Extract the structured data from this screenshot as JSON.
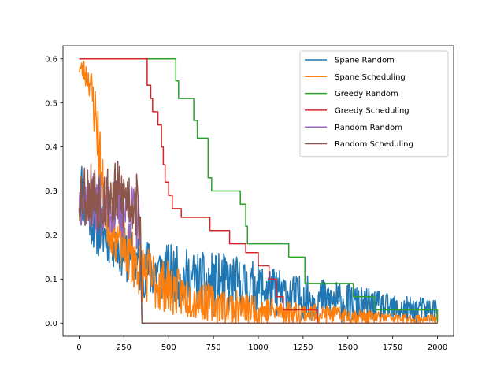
{
  "chart_data": {
    "type": "line",
    "title": "",
    "xlabel": "",
    "ylabel": "",
    "xlim": [
      -90,
      2090
    ],
    "ylim": [
      -0.03,
      0.63
    ],
    "xticks": [
      0,
      250,
      500,
      750,
      1000,
      1250,
      1500,
      1750,
      2000
    ],
    "yticks": [
      0.0,
      0.1,
      0.2,
      0.3,
      0.4,
      0.5,
      0.6
    ],
    "xtick_labels": [
      "0",
      "250",
      "500",
      "750",
      "1000",
      "1250",
      "1500",
      "1750",
      "2000"
    ],
    "ytick_labels": [
      "0.0",
      "0.1",
      "0.2",
      "0.3",
      "0.4",
      "0.5",
      "0.6"
    ],
    "grid": false,
    "legend_position": "top-right",
    "series": [
      {
        "name": "Spane Random",
        "color": "#1f77b4",
        "style": "noisy",
        "noise_seed": 11,
        "x": [
          0,
          50,
          100,
          150,
          200,
          250,
          300,
          350,
          400,
          500,
          600,
          700,
          800,
          1000,
          1200,
          1400,
          1600,
          1800,
          2000
        ],
        "mid": [
          0.32,
          0.26,
          0.22,
          0.2,
          0.18,
          0.16,
          0.14,
          0.13,
          0.12,
          0.11,
          0.1,
          0.09,
          0.09,
          0.08,
          0.06,
          0.05,
          0.04,
          0.03,
          0.03
        ],
        "amp": [
          0.08,
          0.07,
          0.07,
          0.06,
          0.06,
          0.06,
          0.07,
          0.07,
          0.07,
          0.07,
          0.07,
          0.07,
          0.07,
          0.06,
          0.05,
          0.05,
          0.04,
          0.03,
          0.03
        ]
      },
      {
        "name": "Spane Scheduling",
        "color": "#ff7f0e",
        "style": "noisy",
        "noise_seed": 23,
        "x": [
          0,
          30,
          60,
          100,
          130,
          160,
          200,
          250,
          300,
          350,
          400,
          500,
          600,
          700,
          800,
          1000,
          1200,
          1400,
          1600,
          1800,
          2000
        ],
        "mid": [
          0.58,
          0.57,
          0.55,
          0.45,
          0.3,
          0.24,
          0.2,
          0.17,
          0.15,
          0.12,
          0.1,
          0.08,
          0.06,
          0.05,
          0.04,
          0.03,
          0.025,
          0.02,
          0.015,
          0.01,
          0.01
        ],
        "amp": [
          0.02,
          0.03,
          0.04,
          0.08,
          0.08,
          0.07,
          0.06,
          0.06,
          0.07,
          0.07,
          0.07,
          0.06,
          0.05,
          0.045,
          0.04,
          0.035,
          0.025,
          0.02,
          0.015,
          0.01,
          0.01
        ]
      },
      {
        "name": "Greedy Random",
        "color": "#2ca02c",
        "style": "step",
        "x": [
          0,
          530,
          540,
          555,
          620,
          640,
          660,
          710,
          720,
          740,
          770,
          900,
          930,
          940,
          1050,
          1170,
          1260,
          1530,
          1650,
          2000
        ],
        "y": [
          0.6,
          0.6,
          0.55,
          0.51,
          0.51,
          0.46,
          0.42,
          0.42,
          0.33,
          0.3,
          0.3,
          0.27,
          0.22,
          0.18,
          0.18,
          0.15,
          0.09,
          0.06,
          0.03,
          0.0
        ]
      },
      {
        "name": "Greedy Scheduling",
        "color": "#d62728",
        "style": "step",
        "x": [
          0,
          340,
          380,
          400,
          410,
          440,
          460,
          470,
          480,
          500,
          520,
          570,
          730,
          840,
          930,
          1000,
          1060,
          1100,
          1140,
          1330,
          2000
        ],
        "y": [
          0.6,
          0.6,
          0.54,
          0.51,
          0.48,
          0.45,
          0.4,
          0.36,
          0.32,
          0.29,
          0.26,
          0.24,
          0.21,
          0.18,
          0.16,
          0.13,
          0.1,
          0.06,
          0.03,
          0.0,
          0.0
        ]
      },
      {
        "name": "Random Random",
        "color": "#9467bd",
        "style": "noisy",
        "noise_seed": 37,
        "x": [
          0,
          100,
          200,
          300,
          340,
          350,
          2000
        ],
        "mid": [
          0.28,
          0.27,
          0.26,
          0.25,
          0.22,
          0.0,
          0.0
        ],
        "amp": [
          0.06,
          0.07,
          0.07,
          0.07,
          0.07,
          0.0,
          0.0
        ]
      },
      {
        "name": "Random Scheduling",
        "color": "#8c564b",
        "style": "noisy",
        "noise_seed": 53,
        "x": [
          0,
          100,
          200,
          300,
          340,
          350,
          2000
        ],
        "mid": [
          0.3,
          0.29,
          0.29,
          0.28,
          0.25,
          0.0,
          0.0
        ],
        "amp": [
          0.08,
          0.08,
          0.08,
          0.08,
          0.08,
          0.0,
          0.0
        ]
      }
    ]
  }
}
